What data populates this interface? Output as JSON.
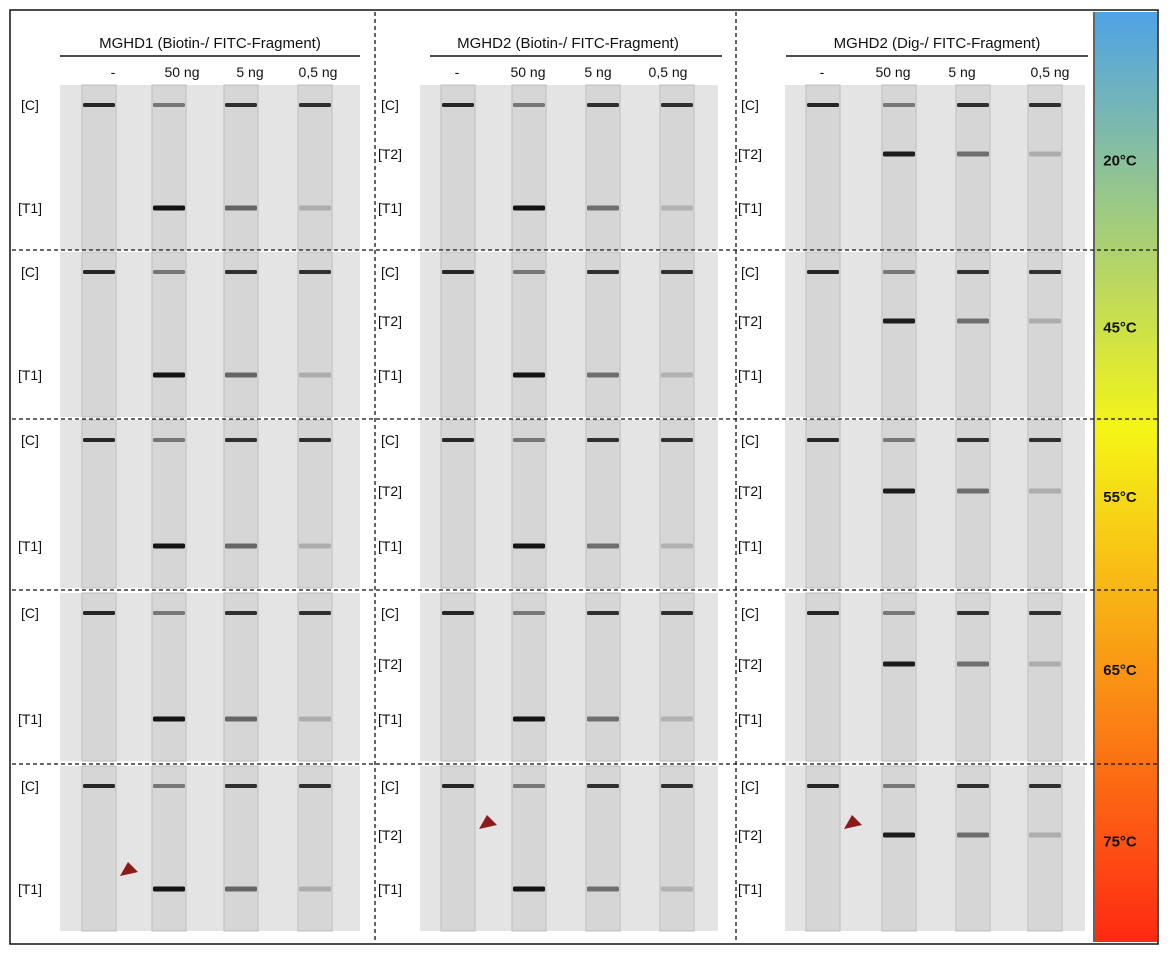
{
  "columns": [
    {
      "title": "MGHD1 (Biotin-/ FITC-Fragment)",
      "amounts": [
        "-",
        "50 ng",
        "5 ng",
        "0,5 ng"
      ],
      "labels": [
        "[C]",
        "[T1]"
      ],
      "test_lines": [
        {
          "label": "[T1]",
          "intensity": [
            0,
            1.0,
            0.55,
            0.15
          ]
        }
      ]
    },
    {
      "title": "MGHD2 (Biotin-/ FITC-Fragment)",
      "amounts": [
        "-",
        "50 ng",
        "5 ng",
        "0,5 ng"
      ],
      "labels": [
        "[C]",
        "[T2]",
        "[T1]"
      ],
      "test_lines": [
        {
          "label": "[T2]",
          "intensity": [
            0,
            0,
            0,
            0
          ]
        },
        {
          "label": "[T1]",
          "intensity": [
            0,
            1.0,
            0.5,
            0.12
          ]
        }
      ]
    },
    {
      "title": "MGHD2 (Dig-/ FITC-Fragment)",
      "amounts": [
        "-",
        "50 ng",
        "5 ng",
        "0,5 ng"
      ],
      "labels": [
        "[C]",
        "[T2]",
        "[T1]"
      ],
      "test_lines": [
        {
          "label": "[T2]",
          "intensity": [
            0,
            0.95,
            0.5,
            0.15
          ]
        },
        {
          "label": "[T1]",
          "intensity": [
            0,
            0,
            0,
            0
          ]
        }
      ]
    }
  ],
  "temperatures": [
    "20°C",
    "45°C",
    "55°C",
    "65°C",
    "75°C"
  ],
  "control_line_intensity": [
    0.9,
    0.45,
    0.85,
    0.85
  ],
  "arrowheads": [
    {
      "column": 0,
      "row": 4,
      "marker": "red-arrowhead"
    },
    {
      "column": 1,
      "row": 4,
      "marker": "red-arrowhead"
    },
    {
      "column": 2,
      "row": 4,
      "marker": "red-arrowhead"
    }
  ],
  "colors": {
    "gradient_top": "#4ea3e6",
    "gradient_yellow": "#f5f516",
    "gradient_bottom": "#ff2a12",
    "arrowhead": "#8b1a1a",
    "band": "#1a1a1a",
    "strip_background": "#d6d6d6",
    "panel_background": "#e4e4e4"
  }
}
